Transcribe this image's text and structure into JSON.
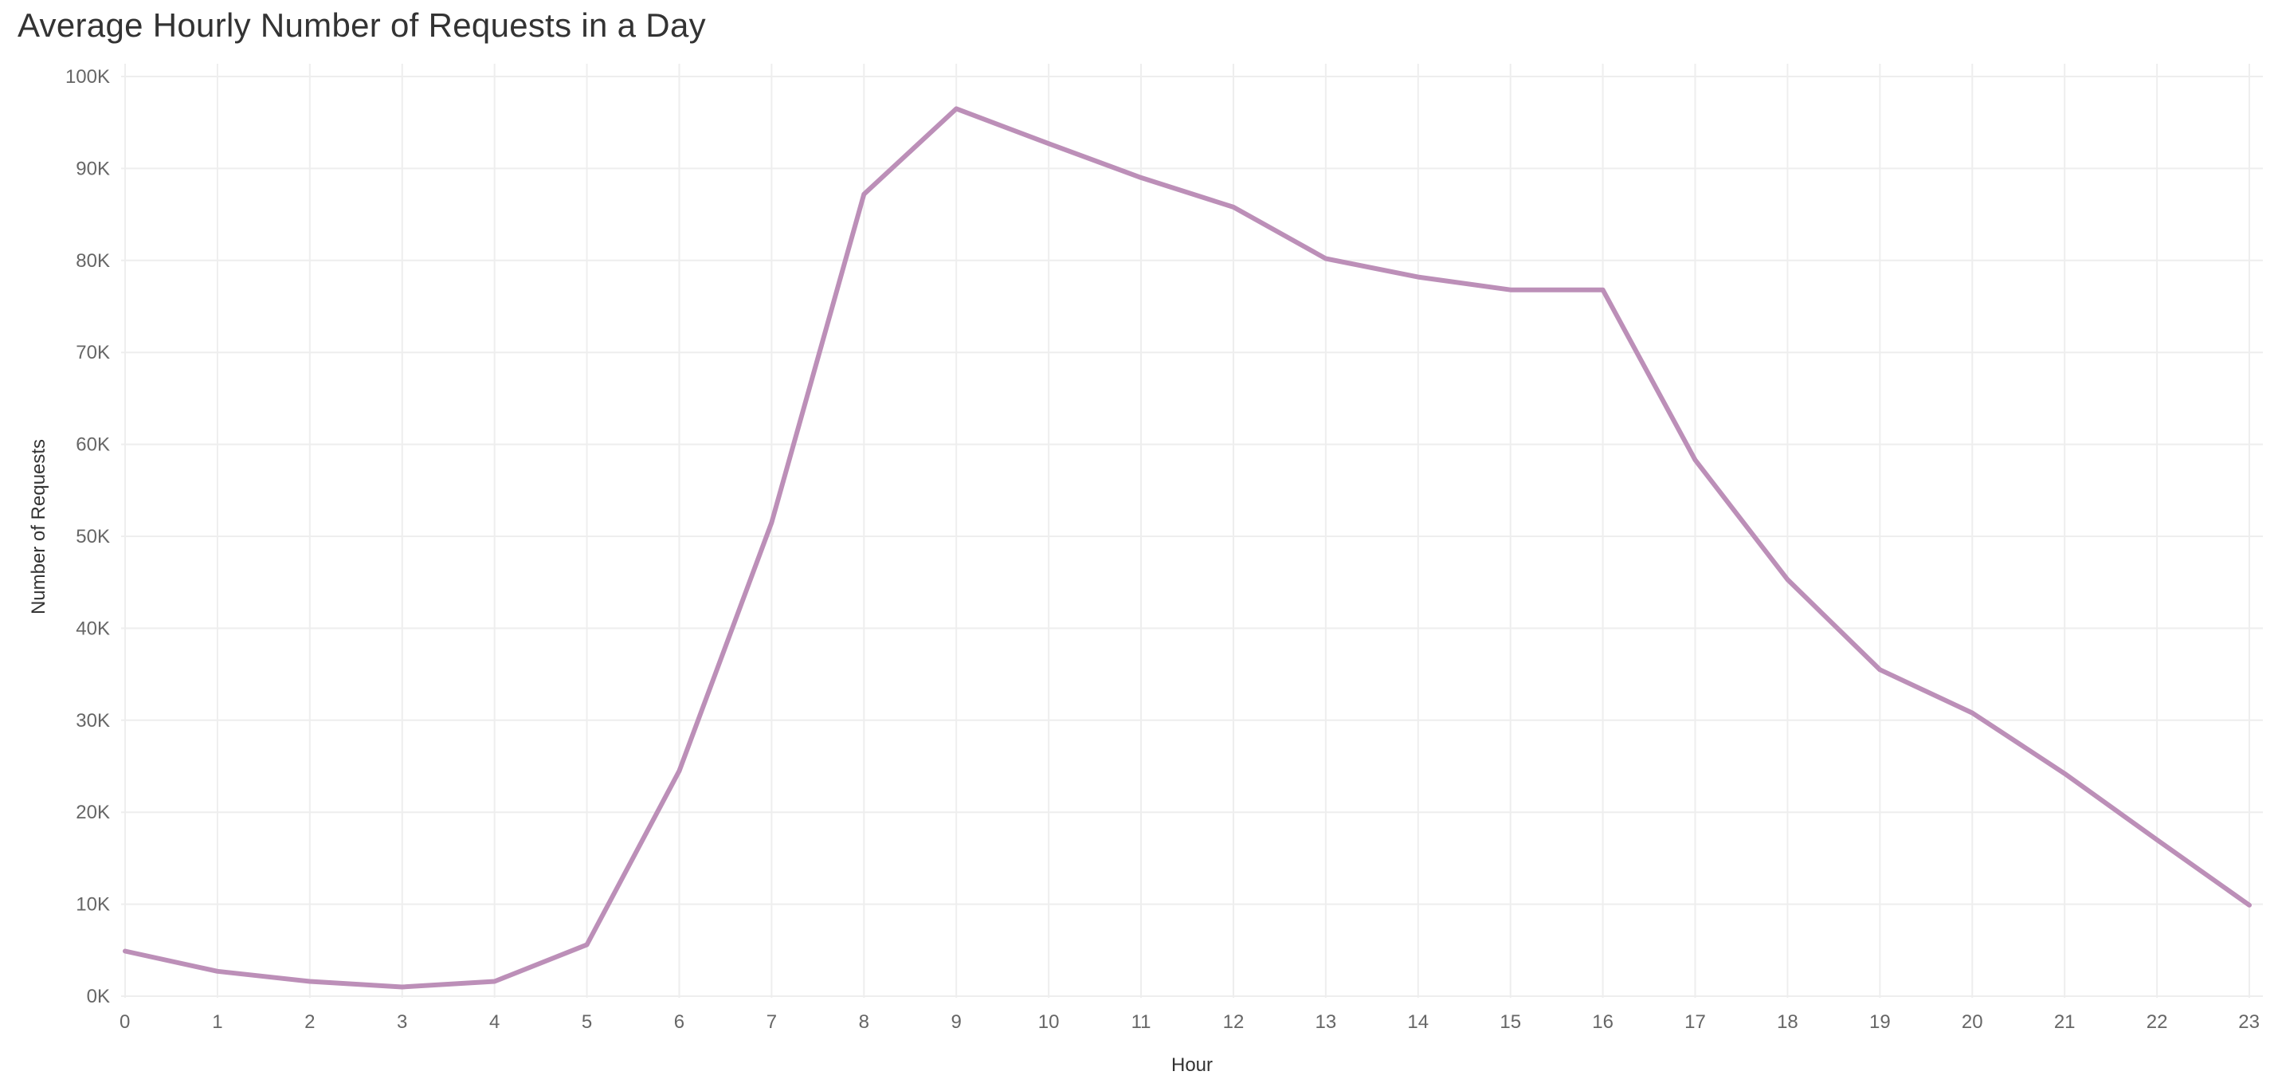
{
  "chart_data": {
    "type": "line",
    "title": "Average Hourly Number of Requests in a Day",
    "xlabel": "Hour",
    "ylabel": "Number of Requests",
    "x": [
      0,
      1,
      2,
      3,
      4,
      5,
      6,
      7,
      8,
      9,
      10,
      11,
      12,
      13,
      14,
      15,
      16,
      17,
      18,
      19,
      20,
      21,
      22,
      23
    ],
    "x_tick_labels": [
      "0",
      "1",
      "2",
      "3",
      "4",
      "5",
      "6",
      "7",
      "8",
      "9",
      "10",
      "11",
      "12",
      "13",
      "14",
      "15",
      "16",
      "17",
      "18",
      "19",
      "20",
      "21",
      "22",
      "23"
    ],
    "y_ticks": [
      0,
      10000,
      20000,
      30000,
      40000,
      50000,
      60000,
      70000,
      80000,
      90000,
      100000
    ],
    "y_tick_labels": [
      "0K",
      "10K",
      "20K",
      "30K",
      "40K",
      "50K",
      "60K",
      "70K",
      "80K",
      "90K",
      "100K"
    ],
    "ylim": [
      0,
      100000
    ],
    "xlim": [
      0,
      23
    ],
    "grid": true,
    "series": [
      {
        "color": "#bc8fb8",
        "values": [
          4900,
          2700,
          1600,
          1000,
          1600,
          5600,
          24500,
          51500,
          87200,
          96500,
          92700,
          89000,
          85800,
          80200,
          78200,
          76800,
          76800,
          58300,
          45300,
          35500,
          30800,
          24200,
          17000,
          9900
        ]
      }
    ]
  }
}
